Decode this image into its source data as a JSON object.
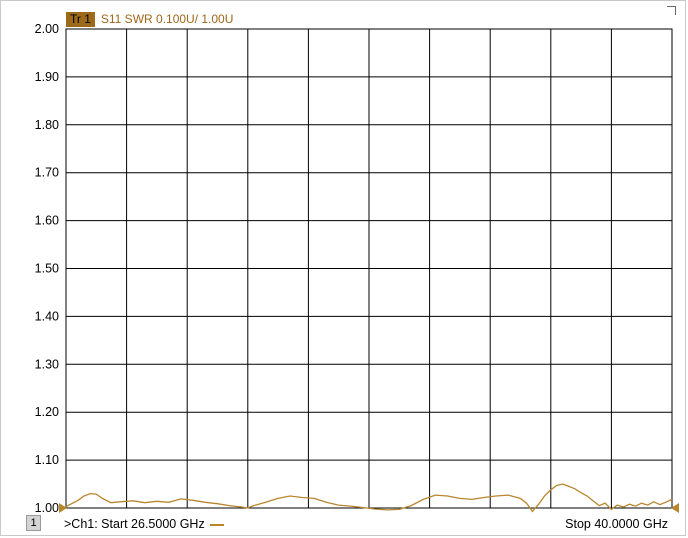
{
  "trace": {
    "badge": "Tr 1",
    "format": "S11 SWR 0.100U/  1.00U",
    "color": "#b8862e"
  },
  "footer": {
    "channel_number": "1",
    "start_label": ">Ch1: Start  26.5000 GHz",
    "stop_label": "Stop  40.0000 GHz"
  },
  "chart_data": {
    "type": "line",
    "xlim": [
      26.5,
      40.0
    ],
    "ylim": [
      1.0,
      2.0
    ],
    "yticks": [
      "1.00",
      "1.10",
      "1.20",
      "1.30",
      "1.40",
      "1.50",
      "1.60",
      "1.70",
      "1.80",
      "1.90",
      "2.00"
    ],
    "x_divisions": 10,
    "grid": true,
    "xlabel": "",
    "ylabel": "",
    "series": [
      {
        "color": "#b8862e",
        "x": [
          26.5,
          26.77,
          26.9,
          27.04,
          27.17,
          27.31,
          27.5,
          27.71,
          28.0,
          28.25,
          28.52,
          28.79,
          29.06,
          29.33,
          29.6,
          29.87,
          30.14,
          30.41,
          30.55,
          30.68,
          30.95,
          31.22,
          31.49,
          31.76,
          32.03,
          32.3,
          32.57,
          32.84,
          33.11,
          33.38,
          33.65,
          33.92,
          34.19,
          34.46,
          34.73,
          35.0,
          35.27,
          35.54,
          35.81,
          36.08,
          36.35,
          36.62,
          36.76,
          36.89,
          37.03,
          37.16,
          37.3,
          37.43,
          37.57,
          37.7,
          37.84,
          37.97,
          38.11,
          38.24,
          38.38,
          38.51,
          38.65,
          38.78,
          38.92,
          39.05,
          39.19,
          39.32,
          39.46,
          39.59,
          39.73,
          39.86,
          40.0
        ],
        "y": [
          1.003,
          1.016,
          1.025,
          1.03,
          1.029,
          1.02,
          1.011,
          1.013,
          1.015,
          1.011,
          1.014,
          1.012,
          1.019,
          1.016,
          1.012,
          1.009,
          1.005,
          1.002,
          1.0,
          1.005,
          1.012,
          1.02,
          1.025,
          1.022,
          1.02,
          1.012,
          1.006,
          1.004,
          1.001,
          0.998,
          0.996,
          0.997,
          1.005,
          1.018,
          1.027,
          1.025,
          1.02,
          1.018,
          1.022,
          1.025,
          1.027,
          1.02,
          1.01,
          0.993,
          1.008,
          1.025,
          1.038,
          1.047,
          1.05,
          1.045,
          1.04,
          1.032,
          1.025,
          1.015,
          1.005,
          1.01,
          0.997,
          1.006,
          1.002,
          1.008,
          1.004,
          1.01,
          1.006,
          1.013,
          1.007,
          1.012,
          1.018
        ]
      }
    ]
  }
}
